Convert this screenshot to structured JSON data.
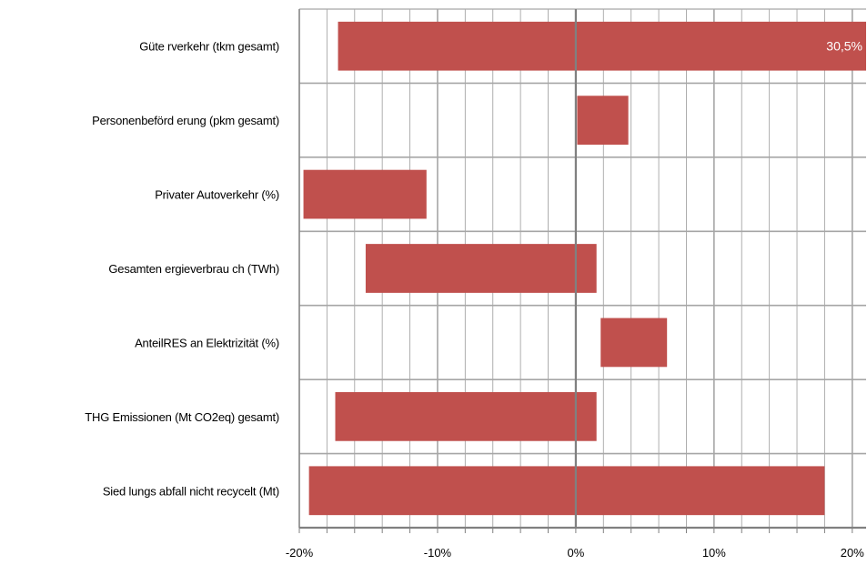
{
  "chart_data": {
    "type": "bar",
    "orientation": "horizontal-range",
    "title": "",
    "xlabel": "",
    "ylabel": "",
    "xlim": [
      -20,
      21
    ],
    "x_ticks": [
      -20,
      -10,
      0,
      10,
      20
    ],
    "x_tick_labels": [
      "-20%",
      "-10%",
      "0%",
      "10%",
      "20%"
    ],
    "minor_grid_step": 2,
    "grid": true,
    "categories": [
      "Güte rverkehr (tkm gesamt)",
      "Personenbeförd erung (pkm gesamt)",
      "Privater Autoverkehr (%)",
      "Gesamten ergieverbrau ch (TWh)",
      "AnteilRES an Elektrizität (%)",
      "THG Emissionen (Mt CO2eq) gesamt)",
      "Sied lungs abfall nicht recycelt (Mt)"
    ],
    "ranges": [
      [
        -17.2,
        21.0
      ],
      [
        0.1,
        3.8
      ],
      [
        -19.7,
        -10.8
      ],
      [
        -15.2,
        1.5
      ],
      [
        1.8,
        6.6
      ],
      [
        -17.4,
        1.5
      ],
      [
        -19.3,
        18.0
      ]
    ],
    "data_labels": [
      "30,5%",
      "",
      "",
      "",
      "",
      "",
      ""
    ],
    "colors": {
      "bar": "#c0504d",
      "grid": "#a6a6a6",
      "zero_line": "#808080",
      "data_label": "#ffffff"
    }
  }
}
